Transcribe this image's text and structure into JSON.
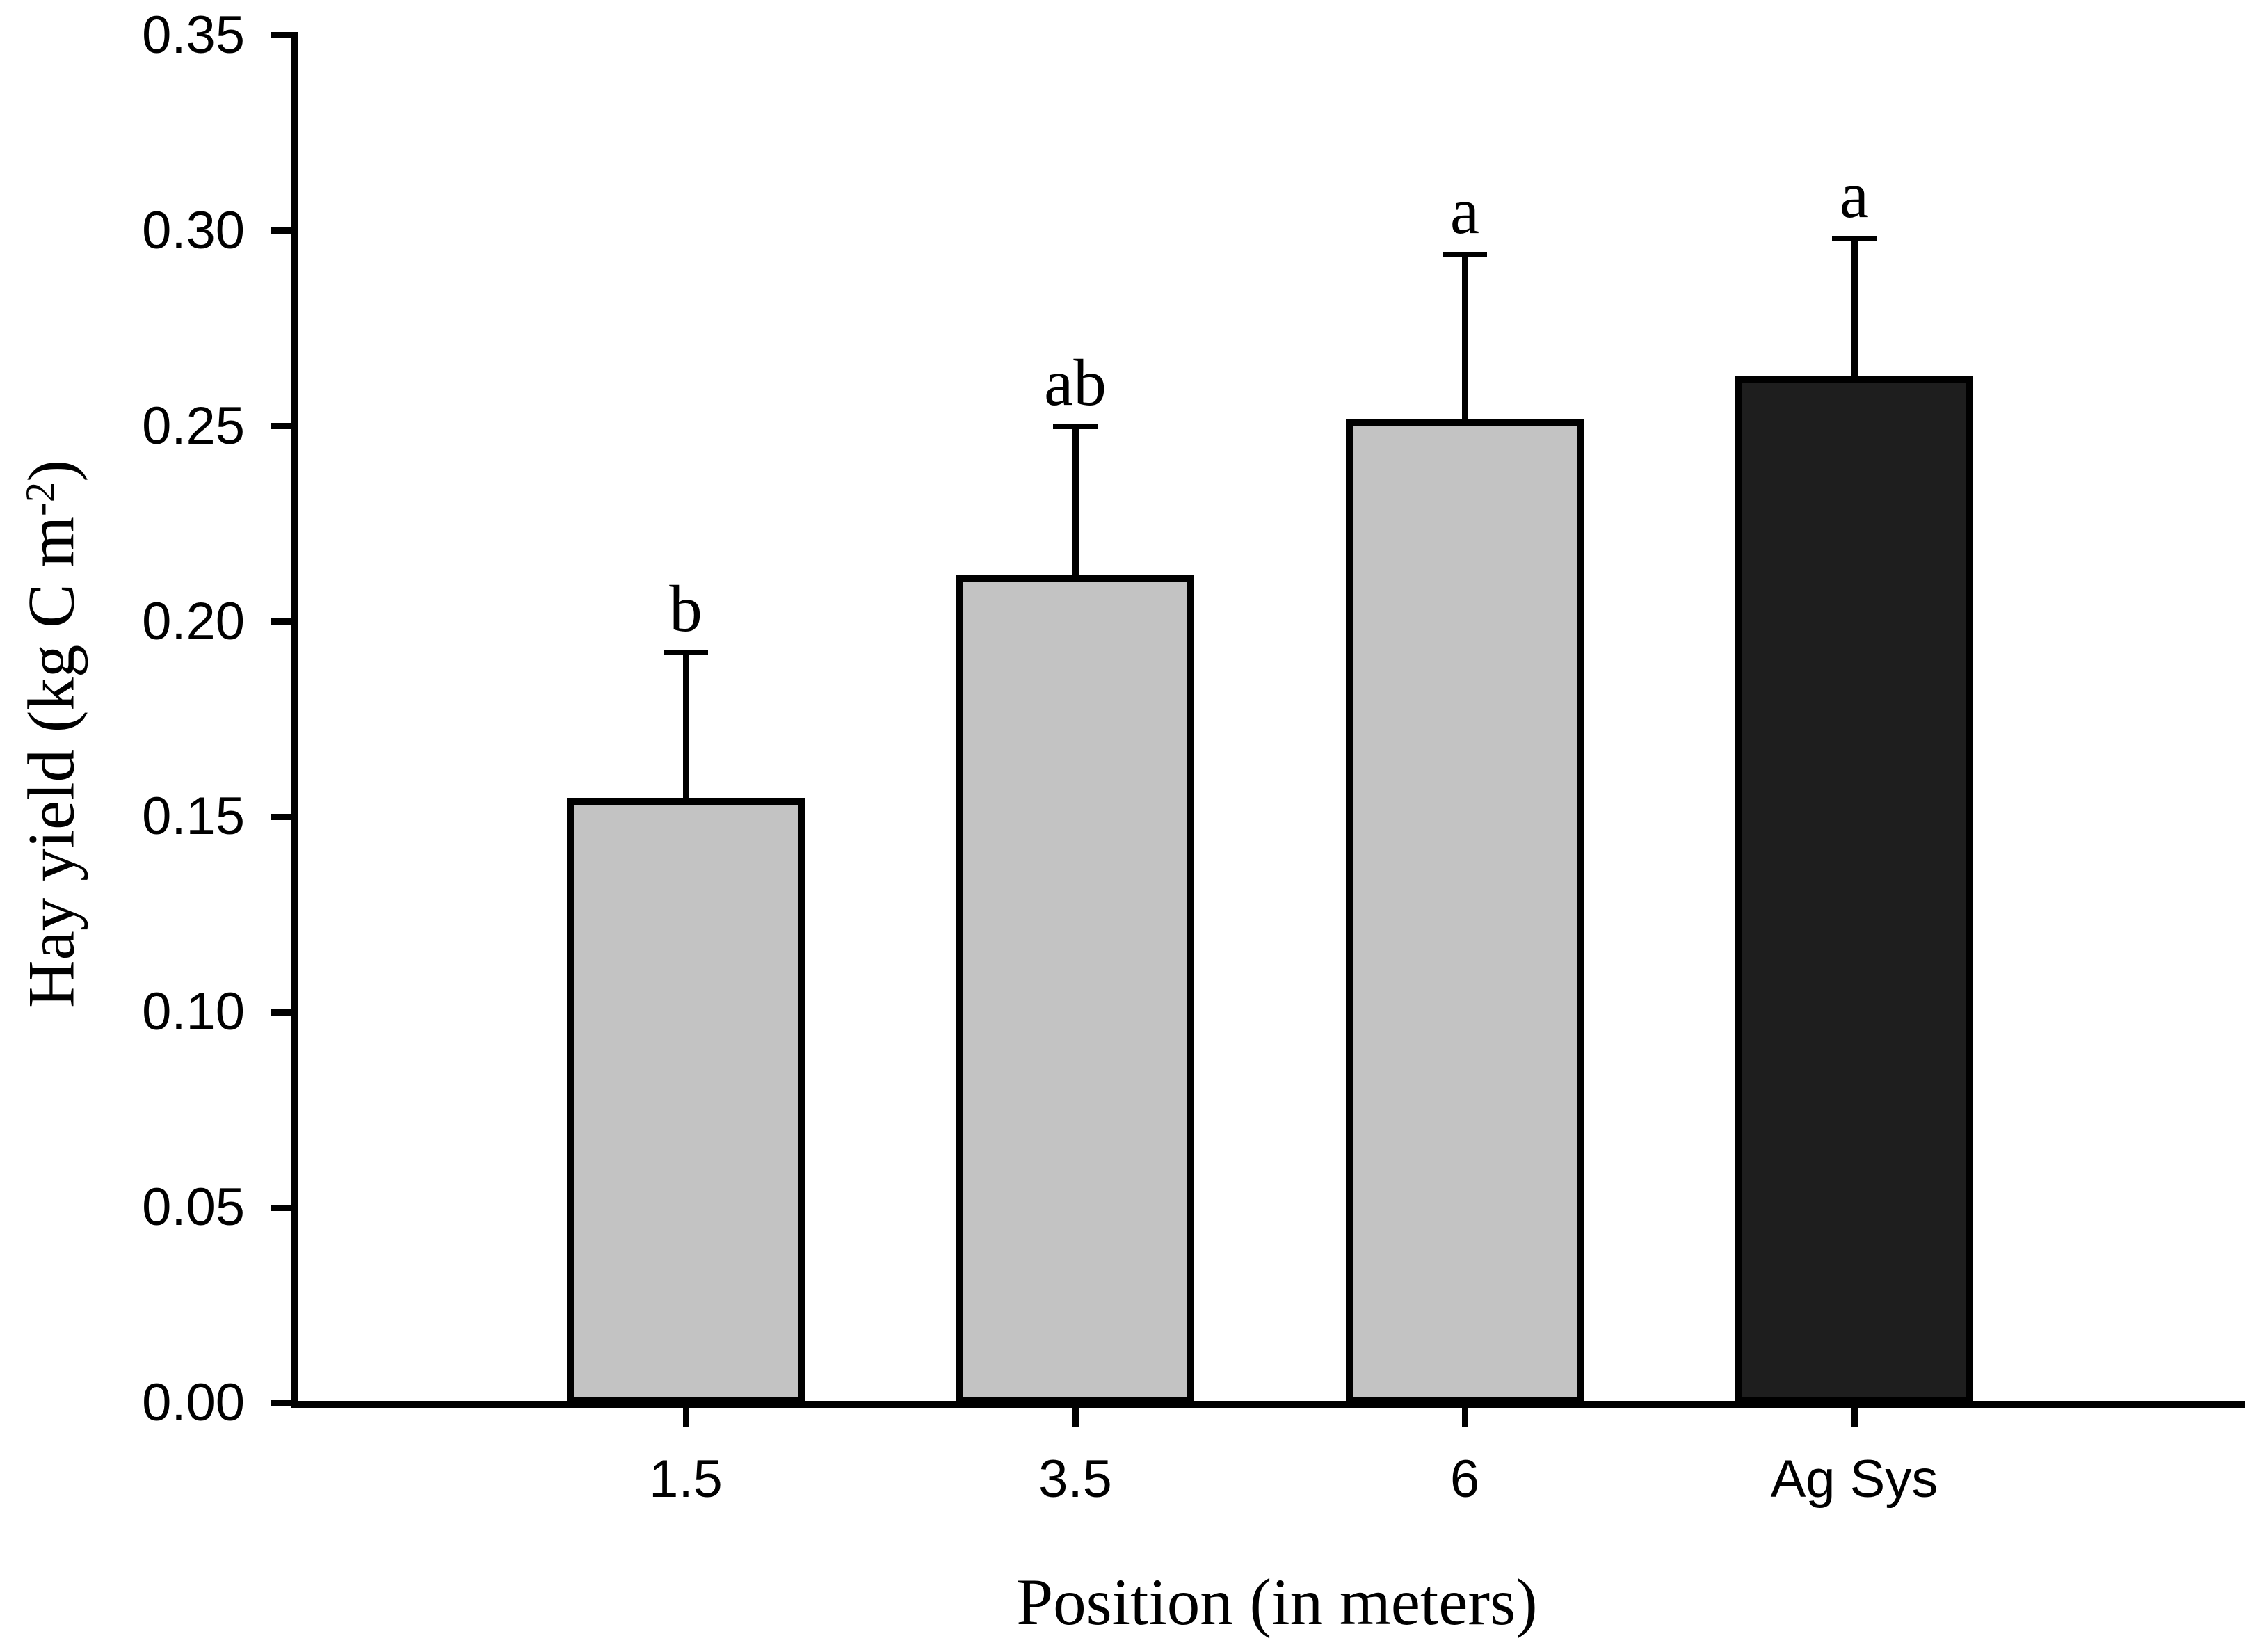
{
  "figure": {
    "background": "#ffffff",
    "axis_color": "#000000"
  },
  "chart_data": {
    "type": "bar",
    "categories": [
      "1.5",
      "3.5",
      "6",
      "Ag Sys"
    ],
    "values": [
      0.154,
      0.211,
      0.251,
      0.262
    ],
    "errors_plus": [
      0.038,
      0.039,
      0.043,
      0.036
    ],
    "sig_letters": [
      "b",
      "ab",
      "a",
      "a"
    ],
    "bar_colors": [
      "#c3c3c3",
      "#c3c3c3",
      "#c3c3c3",
      "#1e1e1e"
    ],
    "bar_outline_color": "#000000",
    "title": "",
    "xlabel": "Position (in meters)",
    "ylabel": "Hay yield (kg C m⁻²)",
    "ylabel_parts": {
      "pre": "Hay yield (kg C m",
      "sup": "-2",
      "post": ")"
    },
    "ylim": [
      0,
      0.35
    ],
    "ytick_step": 0.05,
    "ytick_labels": [
      "0.00",
      "0.05",
      "0.10",
      "0.15",
      "0.20",
      "0.25",
      "0.30",
      "0.35"
    ],
    "grid": false,
    "legend": null,
    "error_bar_direction": "up"
  }
}
